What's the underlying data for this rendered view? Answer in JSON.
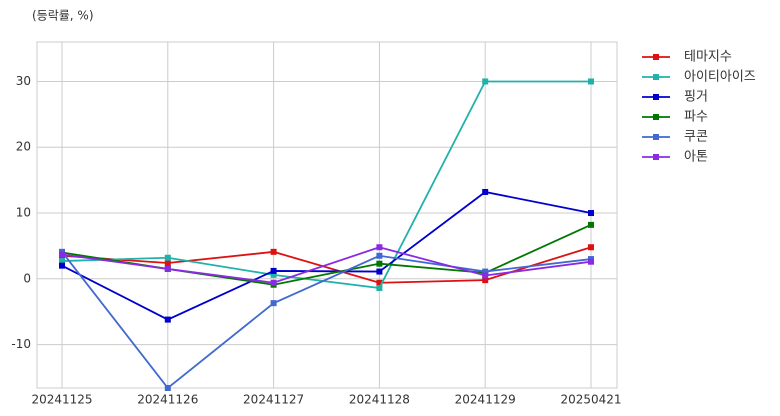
{
  "chart_data": {
    "type": "line",
    "title": "(등락률, %)",
    "categories": [
      "20241125",
      "20241126",
      "20241127",
      "20241128",
      "20241129",
      "20250421"
    ],
    "series": [
      {
        "name": "테마지수",
        "color": "#dd1111",
        "values": [
          3.5,
          2.4,
          4.1,
          -0.6,
          -0.2,
          4.8
        ]
      },
      {
        "name": "아이티아이즈",
        "color": "#20b2aa",
        "values": [
          2.7,
          3.2,
          0.6,
          -1.4,
          30,
          30
        ]
      },
      {
        "name": "핑거",
        "color": "#0000cc",
        "values": [
          2.0,
          -6.2,
          1.2,
          1.1,
          13.2,
          10.0
        ]
      },
      {
        "name": "파수",
        "color": "#007700",
        "values": [
          4.0,
          1.5,
          -0.9,
          2.3,
          0.9,
          8.2
        ]
      },
      {
        "name": "쿠콘",
        "color": "#4169d1",
        "values": [
          4.1,
          -16.6,
          -3.7,
          3.5,
          1.1,
          3.0
        ]
      },
      {
        "name": "아톤",
        "color": "#8a2be2",
        "values": [
          3.7,
          1.5,
          -0.6,
          4.8,
          0.5,
          2.6
        ]
      }
    ],
    "ylim": [
      -16.6,
      36
    ],
    "yticks": [
      -10,
      0,
      10,
      20,
      30
    ],
    "grid": true,
    "legend": "right"
  }
}
